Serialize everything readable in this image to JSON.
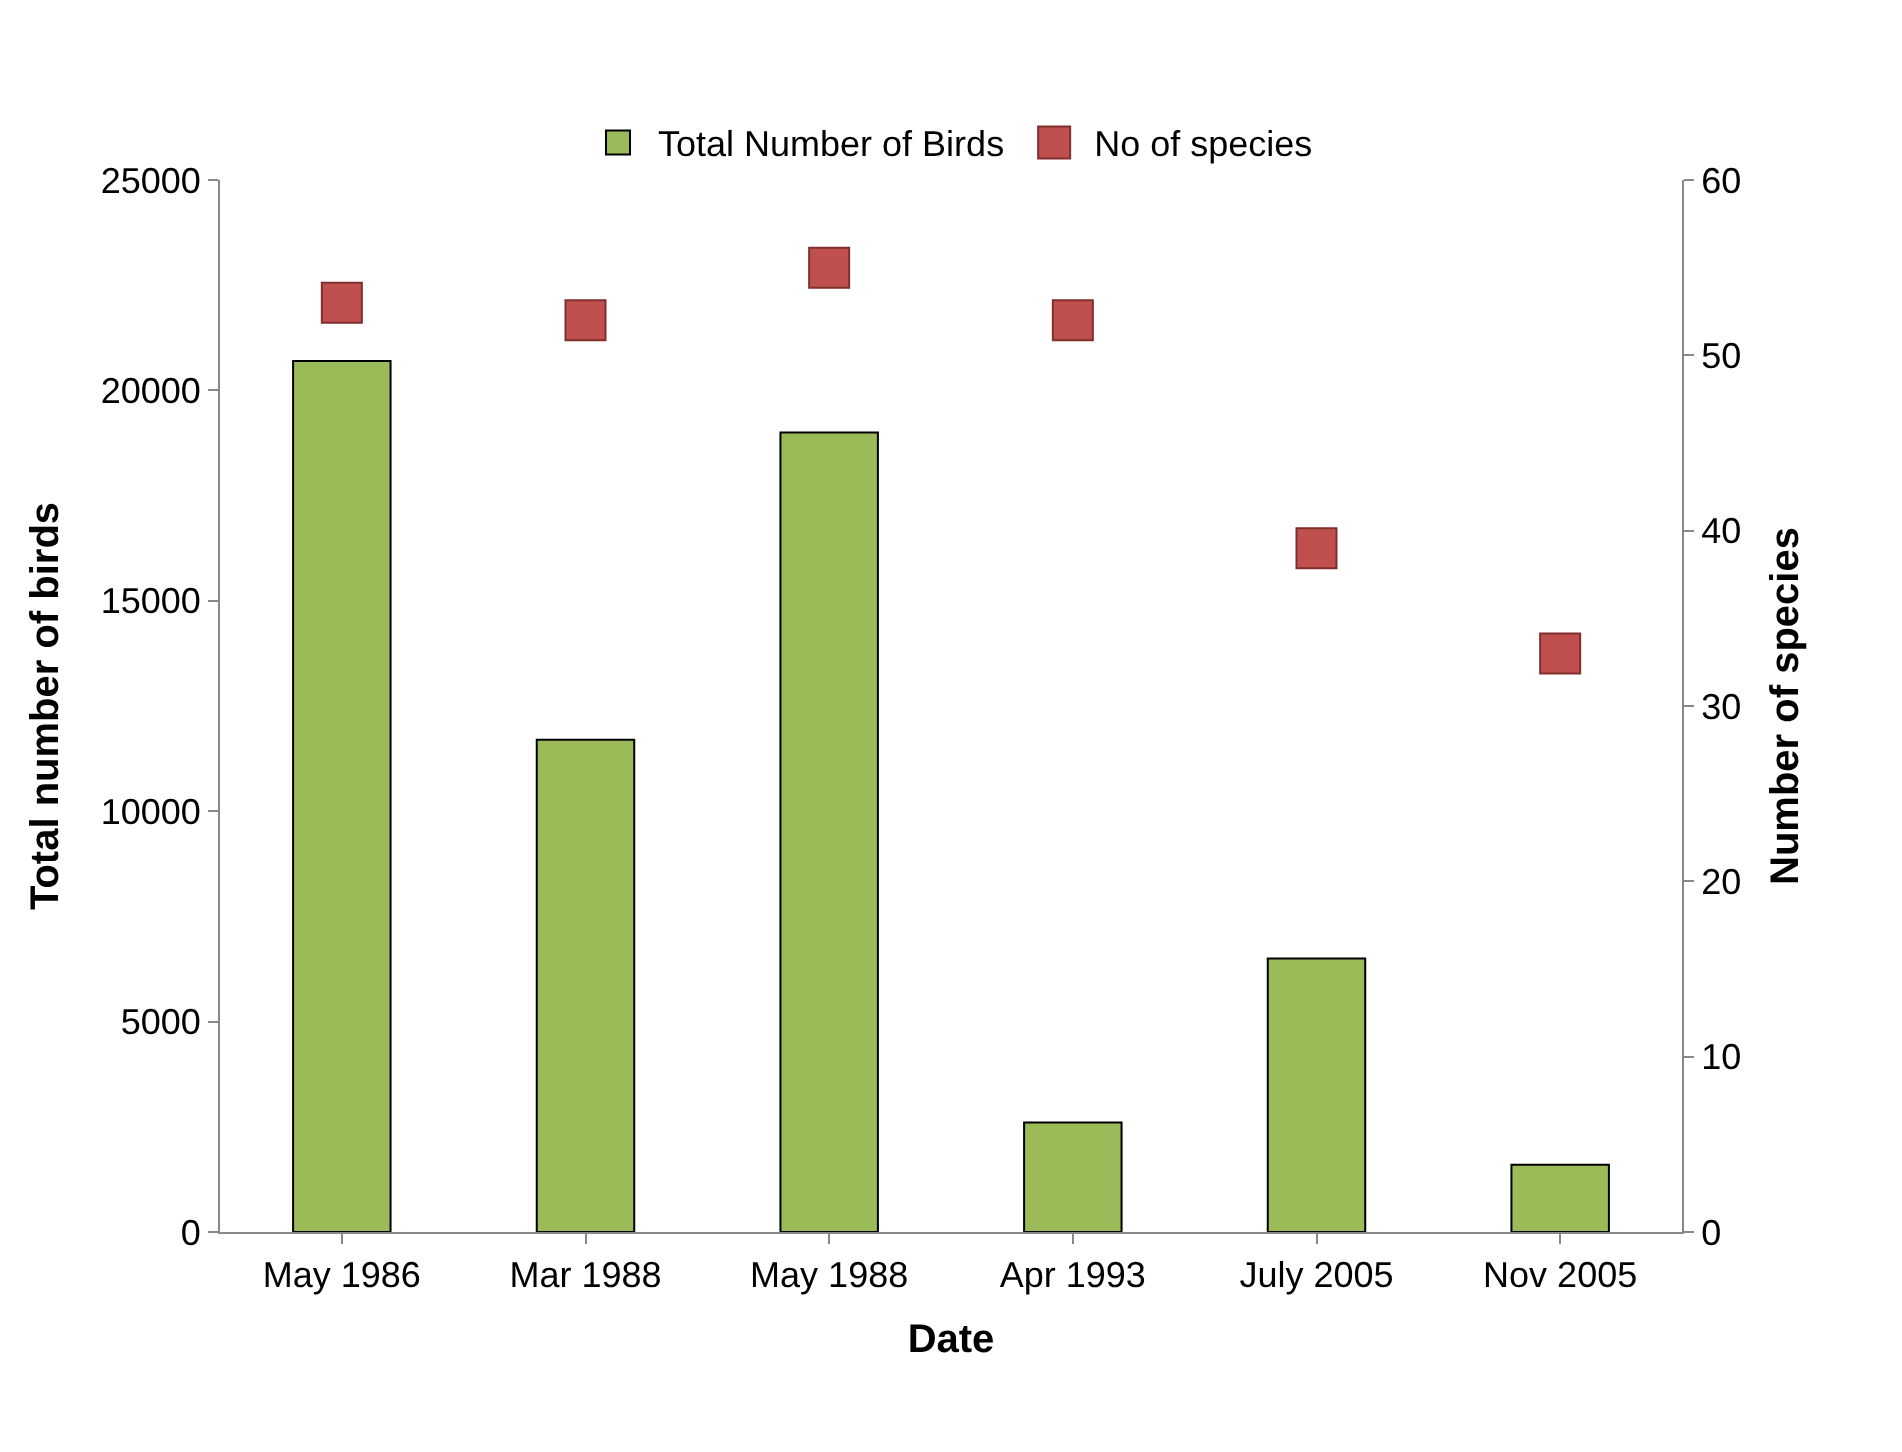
{
  "chart_data": {
    "type": "bar",
    "xlabel": "Date",
    "ylabel": "Total number of birds",
    "y2label": "Number of species",
    "categories": [
      "May 1986",
      "Mar 1988",
      "May 1988",
      "Apr 1993",
      "July 2005",
      "Nov 2005"
    ],
    "series": [
      {
        "name": "Total Number of Birds",
        "color": "#9bbb59",
        "values": [
          20700,
          11700,
          19000,
          2600,
          6500,
          1600
        ]
      },
      {
        "name": "No of species",
        "type": "scatter",
        "axis": "y2",
        "color": "#c0504d",
        "values": [
          53,
          52,
          55,
          52,
          39,
          33
        ]
      }
    ],
    "ylim": [
      0,
      25000
    ],
    "yticks": [
      0,
      5000,
      10000,
      15000,
      20000,
      25000
    ],
    "y2lim": [
      0,
      60
    ],
    "y2ticks": [
      0,
      10,
      20,
      30,
      40,
      50,
      60
    ],
    "marker": "square",
    "grid": false,
    "legend": "top"
  }
}
